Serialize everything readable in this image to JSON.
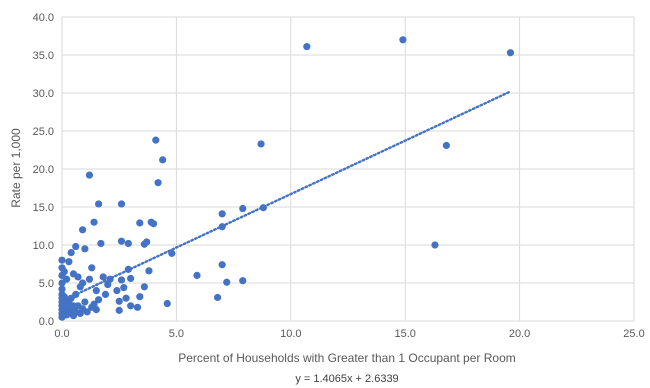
{
  "chart_data": {
    "type": "scatter",
    "title": "",
    "xlabel": "Percent of Households with Greater than 1 Occupant per Room",
    "ylabel": "Rate per 1,000",
    "xlim": [
      0,
      25
    ],
    "ylim": [
      0,
      40
    ],
    "x_ticks": [
      "0.0",
      "5.0",
      "10.0",
      "15.0",
      "20.0",
      "25.0"
    ],
    "y_ticks": [
      "0.0",
      "5.0",
      "10.0",
      "15.0",
      "20.0",
      "25.0",
      "30.0",
      "35.0",
      "40.0"
    ],
    "grid": true,
    "legend": "none",
    "point_color": "#4472c4",
    "trendline": {
      "type": "linear",
      "slope": 1.4065,
      "intercept": 2.6339,
      "x_range": [
        0,
        19.6
      ],
      "style": "dotted",
      "label": "y = 1.4065x + 2.6339"
    },
    "points": [
      [
        0.0,
        0.5
      ],
      [
        0.0,
        1.0
      ],
      [
        0.0,
        1.5
      ],
      [
        0.0,
        2.0
      ],
      [
        0.0,
        2.5
      ],
      [
        0.0,
        3.0
      ],
      [
        0.0,
        3.5
      ],
      [
        0.0,
        4.2
      ],
      [
        0.0,
        5.0
      ],
      [
        0.0,
        6.0
      ],
      [
        0.0,
        7.0
      ],
      [
        0.0,
        8.0
      ],
      [
        0.1,
        1.2
      ],
      [
        0.1,
        2.2
      ],
      [
        0.1,
        3.2
      ],
      [
        0.1,
        6.5
      ],
      [
        0.2,
        0.8
      ],
      [
        0.2,
        1.8
      ],
      [
        0.2,
        2.8
      ],
      [
        0.2,
        5.5
      ],
      [
        0.3,
        1.0
      ],
      [
        0.3,
        2.5
      ],
      [
        0.3,
        7.8
      ],
      [
        0.4,
        1.5
      ],
      [
        0.4,
        3.0
      ],
      [
        0.4,
        9.0
      ],
      [
        0.5,
        0.7
      ],
      [
        0.5,
        2.0
      ],
      [
        0.5,
        6.2
      ],
      [
        0.6,
        1.2
      ],
      [
        0.6,
        3.5
      ],
      [
        0.6,
        9.8
      ],
      [
        0.7,
        2.0
      ],
      [
        0.7,
        5.8
      ],
      [
        0.8,
        1.0
      ],
      [
        0.8,
        4.5
      ],
      [
        0.9,
        1.6
      ],
      [
        0.9,
        5.0
      ],
      [
        0.9,
        12.0
      ],
      [
        1.0,
        2.5
      ],
      [
        1.0,
        9.5
      ],
      [
        1.1,
        1.2
      ],
      [
        1.2,
        19.2
      ],
      [
        1.2,
        5.5
      ],
      [
        1.3,
        1.8
      ],
      [
        1.3,
        7.0
      ],
      [
        1.4,
        2.2
      ],
      [
        1.4,
        13.0
      ],
      [
        1.5,
        1.5
      ],
      [
        1.5,
        4.0
      ],
      [
        1.6,
        15.4
      ],
      [
        1.6,
        2.8
      ],
      [
        1.7,
        10.2
      ],
      [
        1.8,
        5.8
      ],
      [
        1.9,
        3.5
      ],
      [
        2.0,
        4.8
      ],
      [
        2.1,
        5.5
      ],
      [
        2.4,
        4.0
      ],
      [
        2.5,
        1.4
      ],
      [
        2.5,
        2.6
      ],
      [
        2.6,
        15.4
      ],
      [
        2.6,
        10.5
      ],
      [
        2.6,
        5.4
      ],
      [
        2.7,
        4.4
      ],
      [
        2.8,
        3.0
      ],
      [
        2.9,
        10.2
      ],
      [
        2.9,
        6.8
      ],
      [
        3.0,
        2.0
      ],
      [
        3.0,
        5.6
      ],
      [
        3.3,
        1.8
      ],
      [
        3.4,
        12.9
      ],
      [
        3.4,
        3.2
      ],
      [
        3.6,
        4.5
      ],
      [
        3.6,
        10.1
      ],
      [
        3.7,
        10.4
      ],
      [
        3.8,
        6.6
      ],
      [
        3.9,
        13.0
      ],
      [
        4.0,
        12.8
      ],
      [
        4.1,
        23.8
      ],
      [
        4.2,
        18.2
      ],
      [
        4.4,
        21.2
      ],
      [
        4.6,
        2.3
      ],
      [
        4.8,
        8.9
      ],
      [
        5.9,
        6.0
      ],
      [
        6.8,
        3.1
      ],
      [
        7.0,
        14.1
      ],
      [
        7.0,
        12.4
      ],
      [
        7.0,
        7.4
      ],
      [
        7.2,
        5.1
      ],
      [
        7.9,
        14.8
      ],
      [
        7.9,
        5.3
      ],
      [
        8.7,
        23.3
      ],
      [
        8.8,
        14.9
      ],
      [
        10.7,
        36.1
      ],
      [
        14.9,
        37.0
      ],
      [
        16.3,
        10.0
      ],
      [
        16.8,
        23.1
      ],
      [
        19.6,
        35.3
      ]
    ]
  }
}
